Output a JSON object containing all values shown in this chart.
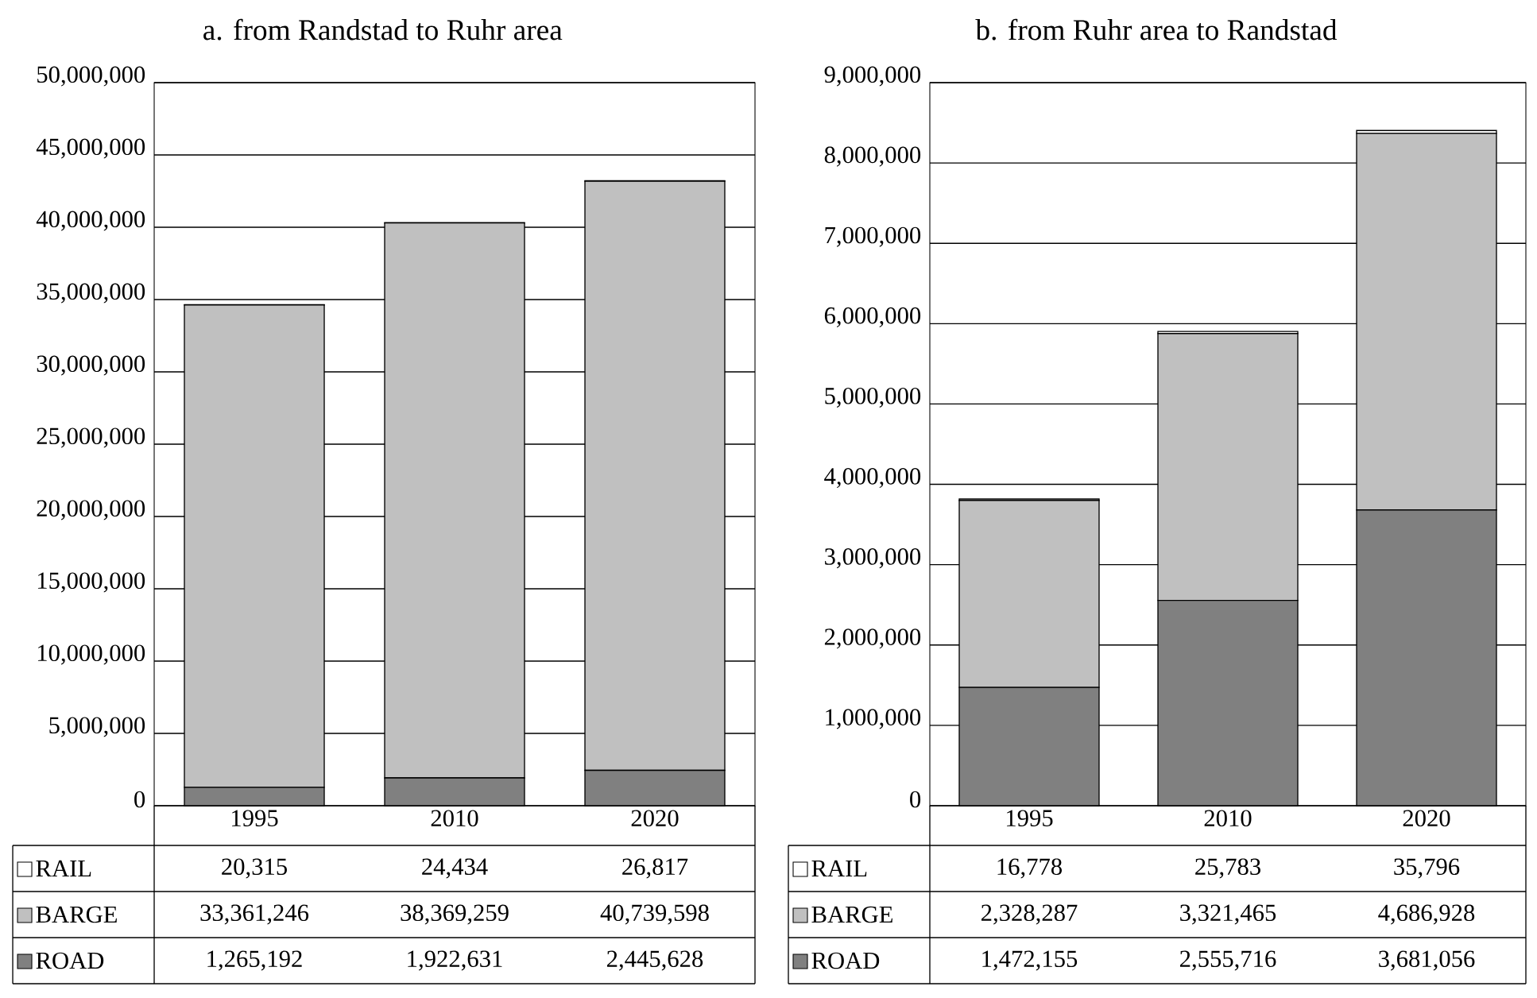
{
  "chart_data": [
    {
      "type": "bar",
      "title": "a. from Randstad to Ruhr area",
      "stacked": true,
      "categories": [
        "1995",
        "2010",
        "2020"
      ],
      "series": [
        {
          "name": "ROAD",
          "color": "#808080",
          "values": [
            1265192,
            1922631,
            2445628
          ],
          "value_labels": [
            "1,265,192",
            "1,922,631",
            "2,445,628"
          ]
        },
        {
          "name": "BARGE",
          "color": "#c0c0c0",
          "values": [
            33361246,
            38369259,
            40739598
          ],
          "value_labels": [
            "33,361,246",
            "38,369,259",
            "40,739,598"
          ]
        },
        {
          "name": "RAIL",
          "color": "#ffffff",
          "values": [
            20315,
            24434,
            26817
          ],
          "value_labels": [
            "20,315",
            "24,434",
            "26,817"
          ]
        }
      ],
      "ylim": [
        0,
        50000000
      ],
      "yticks": [
        0,
        {
          "value": 5000000,
          "label": "5,000,000"
        },
        {
          "value": 10000000,
          "label": "10,000,000"
        },
        {
          "value": 15000000,
          "label": "15,000,000"
        },
        {
          "value": 20000000,
          "label": "20,000,000"
        },
        {
          "value": 25000000,
          "label": "25,000,000"
        },
        {
          "value": 30000000,
          "label": "30,000,000"
        },
        {
          "value": 35000000,
          "label": "35,000,000"
        },
        {
          "value": 40000000,
          "label": "40,000,000"
        },
        {
          "value": 45000000,
          "label": "45,000,000"
        },
        {
          "value": 50000000,
          "label": "50,000,000"
        }
      ],
      "grid": "y",
      "legend": "bottom"
    },
    {
      "type": "bar",
      "title": "b. from Ruhr area to Randstad",
      "stacked": true,
      "categories": [
        "1995",
        "2010",
        "2020"
      ],
      "series": [
        {
          "name": "ROAD",
          "color": "#808080",
          "values": [
            1472155,
            2555716,
            3681056
          ],
          "value_labels": [
            "1,472,155",
            "2,555,716",
            "3,681,056"
          ]
        },
        {
          "name": "BARGE",
          "color": "#c0c0c0",
          "values": [
            2328287,
            3321465,
            4686928
          ],
          "value_labels": [
            "2,328,287",
            "3,321,465",
            "4,686,928"
          ]
        },
        {
          "name": "RAIL",
          "color": "#ffffff",
          "values": [
            16778,
            25783,
            35796
          ],
          "value_labels": [
            "16,778",
            "25,783",
            "35,796"
          ]
        }
      ],
      "ylim": [
        0,
        9000000
      ],
      "yticks": [
        0,
        {
          "value": 1000000,
          "label": "1,000,000"
        },
        {
          "value": 2000000,
          "label": "2,000,000"
        },
        {
          "value": 3000000,
          "label": "3,000,000"
        },
        {
          "value": 4000000,
          "label": "4,000,000"
        },
        {
          "value": 5000000,
          "label": "5,000,000"
        },
        {
          "value": 6000000,
          "label": "6,000,000"
        },
        {
          "value": 7000000,
          "label": "7,000,000"
        },
        {
          "value": 8000000,
          "label": "8,000,000"
        },
        {
          "value": 9000000,
          "label": "9,000,000"
        }
      ],
      "grid": "y",
      "legend": "bottom"
    }
  ]
}
